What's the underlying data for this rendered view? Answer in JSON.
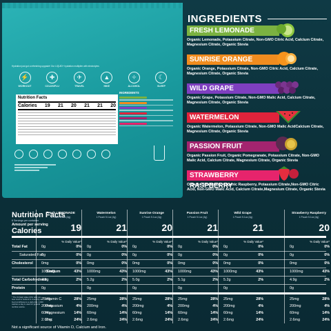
{
  "pouch": {
    "intro_text": "Hydration just got a refreshing upgrade! Our LIQUID+ hydration multiplier with electrolytes",
    "icons": [
      {
        "label": "WORKOUT",
        "icon": "dumbbell-icon",
        "glyph": "⚡"
      },
      {
        "label": "COLDS/FLU",
        "icon": "thermometer-icon",
        "glyph": "✚"
      },
      {
        "label": "TRAVEL",
        "icon": "plane-icon",
        "glyph": "✈"
      },
      {
        "label": "HIKE",
        "icon": "mountain-icon",
        "glyph": "▲"
      },
      {
        "label": "ALCOHOL",
        "icon": "glass-icon",
        "glyph": "✧"
      },
      {
        "label": "SLEEP",
        "icon": "moon-icon",
        "glyph": "☾"
      }
    ],
    "mini_label": {
      "title": "Nutrition Facts",
      "calories_label": "Calories",
      "calories": [
        "19",
        "21",
        "20",
        "21",
        "21",
        "20"
      ]
    },
    "mini_ingredients_title": "INGREDIENTS"
  },
  "ingredients": {
    "title": "INGREDIENTS",
    "items": [
      {
        "name": "FRESH LEMONADE",
        "color": "#7bb241",
        "text": "Organic Lemonade, Potassium Citrate, Non-GMO Citric Acid, Calcium Citrate, Magnesium Citrate, Organic Stevia",
        "fruit": "lime-icon"
      },
      {
        "name": "SUNRISE ORANGE",
        "color": "#f08c1f",
        "text": "Organic Orange, Potassium Citrate, Non-GMO Citric Acid, Calcium Citrate, Magnesium Citrate, Organic Stevia",
        "fruit": "orange-icon"
      },
      {
        "name": "WILD GRAPE",
        "color": "#7e3fc0",
        "text": "Organic Grape, Potassium Citrate, Non-GMO Malic Acid, Calcium Citrate, Magnesium Citrate, Organic Stevia",
        "fruit": "grape-icon"
      },
      {
        "name": "WATERMELON",
        "color": "#e0233b",
        "text": "Organic Watermelon, Potassium Citrate, Non-GMO Malic AcidCalcium Citrate, Magnesium Citrate, Organic Stevia",
        "fruit": "watermelon-icon"
      },
      {
        "name": "PASSION FRUIT",
        "color": "#a3246f",
        "text": "Organic Passion Fruit, Organic Pomegranate, Potassium Citrate, Non-GMO Malic Acid, Calcium Citrate, Magnesium Citrate, Organic Stevia",
        "fruit": "passion-fruit-icon"
      },
      {
        "name": "STRAWBERRY RASPBERRY",
        "color": "#e6246c",
        "text": "Organic Strawberry, Organic Raspberry, Potassium Citrate,Non-GMO Citric Acid, Non-GMO Malic Acid, Calcium Citrate,Magnesium Citrate, Organic Stevia",
        "fruit": "strawberry-icon"
      }
    ]
  },
  "nutrition": {
    "title": "Nutrition Facts",
    "subtitle": "6 Servings per container",
    "amount_per_serving": "Amount per serving",
    "calories_label": "Calories",
    "dv_header": "% Daily Value*",
    "rows": {
      "total_fat": "Total Fat",
      "saturated_fat": "Saturated Fat",
      "cholesterol": "Cholesterol",
      "sodium": "Sodium",
      "total_carbohydrate": "Total Carbohydrate",
      "protein": "Protein",
      "vitamin_c": "Vitamin C",
      "potassium": "Potassium",
      "magnesium": "Magnesium",
      "zinc": "Zinc"
    },
    "footnote": "* The % Daily Value (DV) tells you how much a nutrient in a serving of food contributes to a daily diet. 2,000 calories a day is used for general nutrition advice.",
    "bottom_note": "Not a significant source of Vitamin D, Calcium and Iron.",
    "flavors": [
      {
        "name": "Fresh LEMONADE",
        "serving": "1 Pouch 5.1oz (4g)",
        "calories": "19",
        "values": [
          [
            "0g",
            "0%"
          ],
          [
            "0g",
            "0%"
          ],
          [
            "0mg",
            "0%"
          ],
          [
            "1000mg",
            "43%"
          ],
          [
            "4.8g",
            "2%"
          ],
          [
            "0g",
            ""
          ],
          [
            "25mg",
            "28%"
          ],
          [
            "200mg",
            "4%"
          ],
          [
            "60mg",
            "14%"
          ],
          [
            "2.6mg",
            "24%"
          ]
        ]
      },
      {
        "name": "Watermelon",
        "serving": "1 Pouch 5.1oz (4g)",
        "calories": "21",
        "values": [
          [
            "0g",
            "0%"
          ],
          [
            "0g",
            "0%"
          ],
          [
            "0mg",
            "0%"
          ],
          [
            "1000mg",
            "43%"
          ],
          [
            "5.2g",
            "2%"
          ],
          [
            "0g",
            ""
          ],
          [
            "25mg",
            "28%"
          ],
          [
            "200mg",
            "4%"
          ],
          [
            "60mg",
            "14%"
          ],
          [
            "2.6mg",
            "24%"
          ]
        ]
      },
      {
        "name": "Sunrise Orange",
        "serving": "1 Pouch 5.1oz (4g)",
        "calories": "20",
        "values": [
          [
            "0g",
            "0%"
          ],
          [
            "0g",
            "0%"
          ],
          [
            "0mg",
            "0%"
          ],
          [
            "1000mg",
            "43%"
          ],
          [
            "5.0g",
            "2%"
          ],
          [
            "0g",
            ""
          ],
          [
            "25mg",
            "28%"
          ],
          [
            "200mg",
            "4%"
          ],
          [
            "60mg",
            "14%"
          ],
          [
            "2.6mg",
            "24%"
          ]
        ]
      },
      {
        "name": "Passion Fruit",
        "serving": "1 Pouch 5.1oz (4g)",
        "calories": "21",
        "values": [
          [
            "0g",
            "0%"
          ],
          [
            "0g",
            "0%"
          ],
          [
            "0mg",
            "0%"
          ],
          [
            "1000mg",
            "43%"
          ],
          [
            "5.1g",
            "2%"
          ],
          [
            "0g",
            ""
          ],
          [
            "25mg",
            "28%"
          ],
          [
            "200mg",
            "4%"
          ],
          [
            "60mg",
            "14%"
          ],
          [
            "2.6mg",
            "24%"
          ]
        ]
      },
      {
        "name": "Wild Grape",
        "serving": "1 Pouch 5.1oz (4g)",
        "calories": "21",
        "values": [
          [
            "0g",
            "0%"
          ],
          [
            "0g",
            "0%"
          ],
          [
            "0mg",
            "0%"
          ],
          [
            "1000mg",
            "43%"
          ],
          [
            "5.2g",
            "2%"
          ],
          [
            "0g",
            ""
          ],
          [
            "25mg",
            "28%"
          ],
          [
            "200mg",
            "4%"
          ],
          [
            "60mg",
            "14%"
          ],
          [
            "2.6mg",
            "24%"
          ]
        ]
      },
      {
        "name": "Strawberry Raspberry",
        "serving": "1 Pouch 5.1oz (4g)",
        "calories": "20",
        "values": [
          [
            "0g",
            "0%"
          ],
          [
            "0g",
            "0%"
          ],
          [
            "0mg",
            "0%"
          ],
          [
            "1000mg",
            "43%"
          ],
          [
            "4.9g",
            "2%"
          ],
          [
            "0g",
            ""
          ],
          [
            "25mg",
            "28%"
          ],
          [
            "200mg",
            "4%"
          ],
          [
            "60mg",
            "14%"
          ],
          [
            "2.6mg",
            "24%"
          ]
        ]
      }
    ]
  }
}
